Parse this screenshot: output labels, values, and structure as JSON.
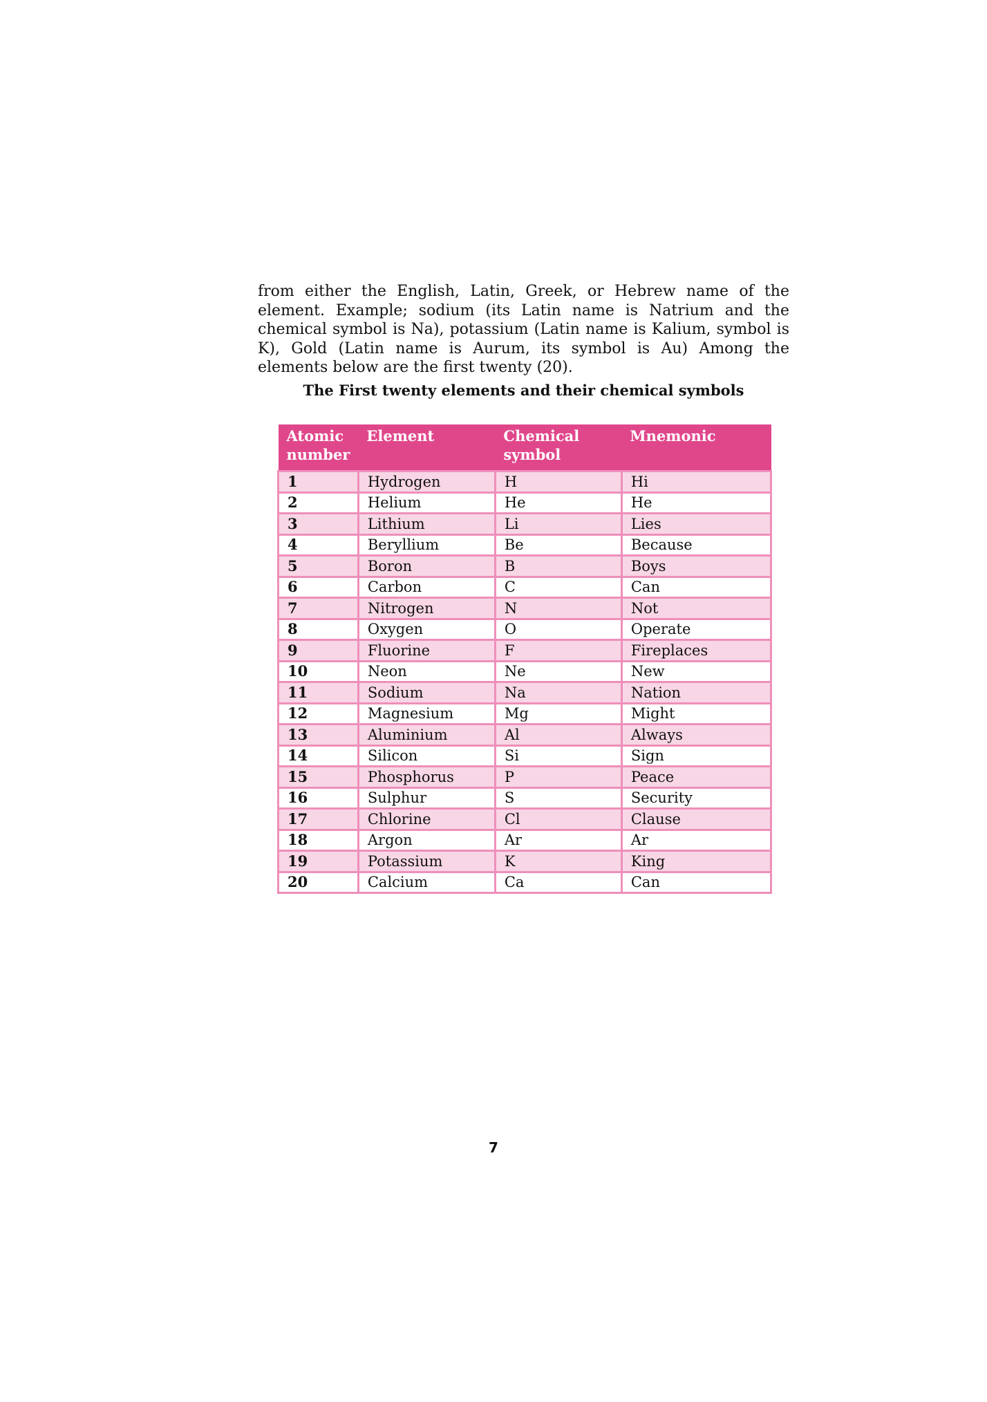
{
  "paragraph": "from either the English, Latin, Greek, or Hebrew name of the element. Example; sodium (its Latin name is Natrium and the chemical symbol is Na), potassium (Latin name is Kalium, symbol is K), Gold (Latin name is Aurum, its symbol is Au) Among the elements below are the first twenty (20).",
  "caption": "The First twenty elements and their chemical symbols",
  "table": {
    "headers": [
      "Atomic number",
      "Element",
      "Chemical symbol",
      "Mnemonic"
    ],
    "rows": [
      [
        "1",
        "Hydrogen",
        "H",
        "Hi"
      ],
      [
        "2",
        "Helium",
        "He",
        "He"
      ],
      [
        "3",
        "Lithium",
        "Li",
        "Lies"
      ],
      [
        "4",
        "Beryllium",
        "Be",
        "Because"
      ],
      [
        "5",
        "Boron",
        "B",
        "Boys"
      ],
      [
        "6",
        "Carbon",
        "C",
        "Can"
      ],
      [
        "7",
        "Nitrogen",
        "N",
        "Not"
      ],
      [
        "8",
        "Oxygen",
        "O",
        "Operate"
      ],
      [
        "9",
        "Fluorine",
        "F",
        "Fireplaces"
      ],
      [
        "10",
        "Neon",
        "Ne",
        "New"
      ],
      [
        "11",
        "Sodium",
        "Na",
        "Nation"
      ],
      [
        "12",
        "Magnesium",
        "Mg",
        "Might"
      ],
      [
        "13",
        "Aluminium",
        "Al",
        "Always"
      ],
      [
        "14",
        "Silicon",
        "Si",
        "Sign"
      ],
      [
        "15",
        "Phosphorus",
        "P",
        "Peace"
      ],
      [
        "16",
        "Sulphur",
        "S",
        "Security"
      ],
      [
        "17",
        "Chlorine",
        "Cl",
        "Clause"
      ],
      [
        "18",
        "Argon",
        "Ar",
        "Ar"
      ],
      [
        "19",
        "Potassium",
        "K",
        "King"
      ],
      [
        "20",
        "Calcium",
        "Ca",
        "Can"
      ]
    ]
  },
  "colors": {
    "header_bg": "#e0478b",
    "row_alt_bg": "#f8d6e5",
    "border": "#ee8fba"
  },
  "page_number": "7"
}
